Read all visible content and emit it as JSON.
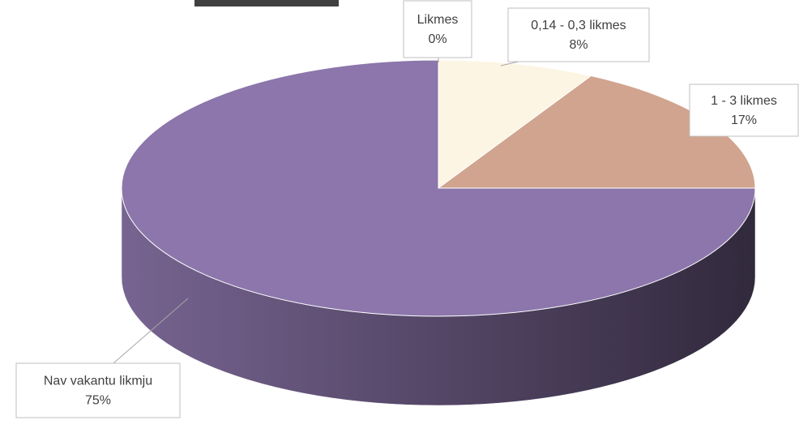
{
  "chart_data": {
    "type": "pie",
    "categories": [
      "Likmes",
      "0,14 - 0,3 likmes",
      "1 - 3 likmes",
      "Nav vakantu likmju"
    ],
    "values": [
      0,
      8,
      17,
      75
    ],
    "value_labels": [
      "0%",
      "8%",
      "17%",
      "75%"
    ],
    "colors": [
      "#4f81bd",
      "#fdf5e4",
      "#d0a48e",
      "#8c76ab"
    ]
  }
}
